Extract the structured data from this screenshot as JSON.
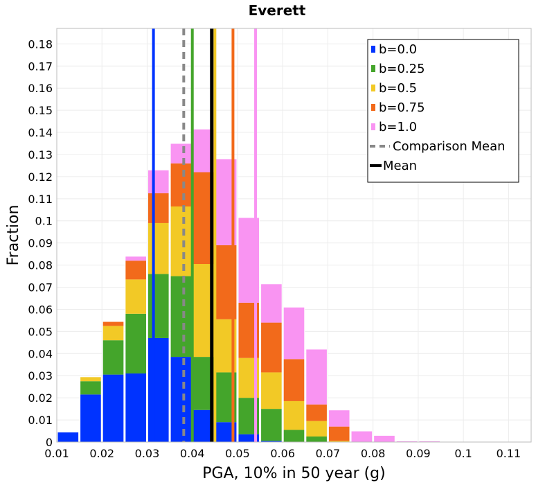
{
  "chart_data": {
    "type": "bar",
    "stacked": true,
    "title": "Everett",
    "xlabel": "PGA, 10% in 50 year (g)",
    "ylabel": "Fraction",
    "xlim": [
      0.01,
      0.115
    ],
    "ylim": [
      0,
      0.187
    ],
    "grid": true,
    "legend_position": "top-right",
    "x_ticks": [
      "0.01",
      "0.02",
      "0.03",
      "0.04",
      "0.05",
      "0.06",
      "0.07",
      "0.08",
      "0.09",
      "0.1",
      "0.11"
    ],
    "y_ticks": [
      "0",
      "0.01",
      "0.02",
      "0.03",
      "0.04",
      "0.05",
      "0.06",
      "0.07",
      "0.08",
      "0.09",
      "0.1",
      "0.11",
      "0.12",
      "0.13",
      "0.14",
      "0.15",
      "0.16",
      "0.17",
      "0.18"
    ],
    "bin_width": 0.005,
    "bin_starts": [
      0.01,
      0.015,
      0.02,
      0.025,
      0.03,
      0.035,
      0.04,
      0.045,
      0.05,
      0.055,
      0.06,
      0.065,
      0.07,
      0.075,
      0.08,
      0.085,
      0.09,
      0.095,
      0.1,
      0.105,
      0.11
    ],
    "series": [
      {
        "name": "b=0.0",
        "color": "#0033ff",
        "values": [
          0.0045,
          0.0215,
          0.0305,
          0.031,
          0.047,
          0.0385,
          0.0145,
          0.009,
          0.0035,
          0.0005,
          0,
          0,
          0,
          0,
          0,
          0,
          0,
          0,
          0,
          0,
          0
        ]
      },
      {
        "name": "b=0.25",
        "color": "#44a52b",
        "values": [
          0,
          0.006,
          0.0155,
          0.027,
          0.029,
          0.0365,
          0.024,
          0.0225,
          0.0165,
          0.0145,
          0.0055,
          0.0025,
          0,
          0,
          0,
          0,
          0,
          0,
          0,
          0,
          0
        ]
      },
      {
        "name": "b=0.5",
        "color": "#f2c926",
        "values": [
          0,
          0.002,
          0.0065,
          0.0155,
          0.023,
          0.0315,
          0.042,
          0.024,
          0.018,
          0.0165,
          0.013,
          0.007,
          0.0005,
          0,
          0,
          0,
          0,
          0,
          0,
          0,
          0
        ]
      },
      {
        "name": "b=0.75",
        "color": "#f26a1b",
        "values": [
          0,
          0,
          0.002,
          0.0085,
          0.0135,
          0.0195,
          0.0415,
          0.0335,
          0.025,
          0.0225,
          0.019,
          0.0075,
          0.0065,
          0,
          0,
          0,
          0,
          0,
          0,
          0,
          0
        ]
      },
      {
        "name": "b=1.0",
        "color": "#f994f2",
        "values": [
          0,
          0,
          0,
          0.002,
          0.0105,
          0.009,
          0.0195,
          0.039,
          0.0385,
          0.0175,
          0.0235,
          0.025,
          0.0075,
          0.005,
          0.003,
          0.0005,
          0.0005,
          0.0003,
          0.0003,
          0.0002,
          0.0003
        ]
      }
    ],
    "vertical_lines": [
      {
        "series": "b=0.0",
        "x": 0.0314,
        "color": "#0033ff",
        "style": "solid"
      },
      {
        "series": "b=0.25",
        "x": 0.04,
        "color": "#44a52b",
        "style": "solid"
      },
      {
        "series": "b=0.5",
        "x": 0.045,
        "color": "#f2c926",
        "style": "solid"
      },
      {
        "series": "b=0.75",
        "x": 0.049,
        "color": "#f26a1b",
        "style": "solid"
      },
      {
        "series": "b=1.0",
        "x": 0.054,
        "color": "#f994f2",
        "style": "solid"
      },
      {
        "series": "Comparison Mean",
        "x": 0.0381,
        "color": "#888888",
        "style": "dashed"
      },
      {
        "series": "Mean",
        "x": 0.0443,
        "color": "#000000",
        "style": "solid"
      }
    ],
    "legend": [
      {
        "label": "b=0.0",
        "color": "#0033ff",
        "kind": "box"
      },
      {
        "label": "b=0.25",
        "color": "#44a52b",
        "kind": "box"
      },
      {
        "label": "b=0.5",
        "color": "#f2c926",
        "kind": "box"
      },
      {
        "label": "b=0.75",
        "color": "#f26a1b",
        "kind": "box"
      },
      {
        "label": "b=1.0",
        "color": "#f994f2",
        "kind": "box"
      },
      {
        "label": "Comparison Mean",
        "color": "#888888",
        "kind": "dashed"
      },
      {
        "label": "Mean",
        "color": "#000000",
        "kind": "line"
      }
    ]
  }
}
